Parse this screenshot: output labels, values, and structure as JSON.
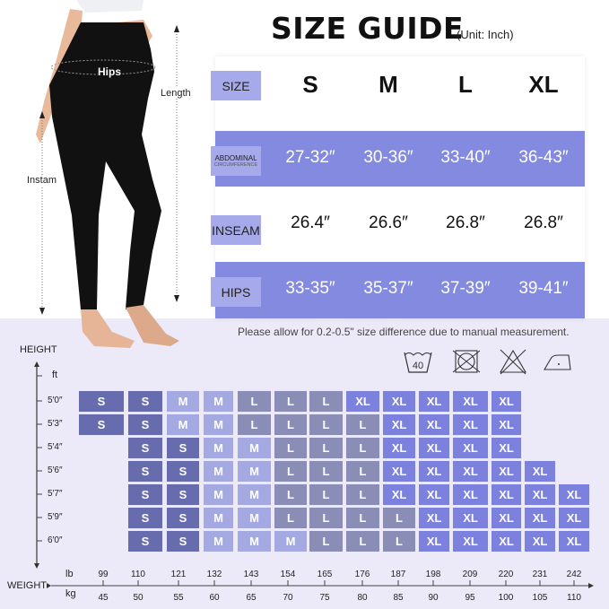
{
  "figure": {
    "hips_label": "Hips",
    "length_label": "Length",
    "inseam_label": "Instam"
  },
  "header": {
    "title": "SIZE GUIDE",
    "unit": "(Unit: Inch)"
  },
  "size_table": {
    "size_label": "SIZE",
    "sizes": [
      "S",
      "M",
      "L",
      "XL"
    ],
    "rows": [
      {
        "label": "ABDOMINAL",
        "sublabel": "CIRCUMFERENCE",
        "values": [
          "27-32″",
          "30-36″",
          "33-40″",
          "36-43″"
        ]
      },
      {
        "label": "INSEAM",
        "values": [
          "26.4″",
          "26.6″",
          "26.8″",
          "26.8″"
        ]
      },
      {
        "label": "HIPS",
        "values": [
          "33-35″",
          "35-37″",
          "37-39″",
          "39-41″"
        ]
      }
    ],
    "band_color": "#838ae0",
    "label_color": "#a7aaea"
  },
  "note": "Please allow for 0.2-0.5\" size difference due to manual measurement.",
  "care_icons": [
    {
      "icon": "wash-40-icon",
      "text": "40"
    },
    {
      "icon": "do-not-tumble-dry-icon"
    },
    {
      "icon": "do-not-bleach-icon"
    },
    {
      "icon": "iron-low-heat-icon"
    }
  ],
  "chart": {
    "height_label": "HEIGHT",
    "height_unit": "ft",
    "weight_label": "WEIGHT",
    "lb_label": "lb",
    "kg_label": "kg",
    "heights": [
      "5′0″",
      "5′3″",
      "5′4″",
      "5′6″",
      "5′7″",
      "5′9″",
      "6′0″"
    ],
    "lb": [
      "99",
      "110",
      "121",
      "132",
      "143",
      "154",
      "165",
      "176",
      "187",
      "198",
      "209",
      "220",
      "231",
      "242"
    ],
    "kg": [
      "45",
      "50",
      "55",
      "60",
      "65",
      "70",
      "75",
      "80",
      "85",
      "90",
      "95",
      "100",
      "105",
      "110"
    ],
    "size_colors": {
      "S": "#666cae",
      "M": "#a5a9e2",
      "L": "#8a8eb6",
      "XL": "#7b81dc"
    },
    "grid": [
      [
        "S",
        "S",
        "M",
        "M",
        "L",
        "L",
        "L",
        "XL",
        "XL",
        "XL",
        "XL",
        "XL",
        null,
        null
      ],
      [
        "S",
        "S",
        "M",
        "M",
        "L",
        "L",
        "L",
        "L",
        "XL",
        "XL",
        "XL",
        "XL",
        null,
        null
      ],
      [
        null,
        "S",
        "S",
        "M",
        "M",
        "L",
        "L",
        "L",
        "XL",
        "XL",
        "XL",
        "XL",
        null,
        null
      ],
      [
        null,
        "S",
        "S",
        "M",
        "M",
        "L",
        "L",
        "L",
        "XL",
        "XL",
        "XL",
        "XL",
        "XL",
        null
      ],
      [
        null,
        "S",
        "S",
        "M",
        "M",
        "L",
        "L",
        "L",
        "XL",
        "XL",
        "XL",
        "XL",
        "XL",
        "XL"
      ],
      [
        null,
        "S",
        "S",
        "M",
        "M",
        "L",
        "L",
        "L",
        "L",
        "XL",
        "XL",
        "XL",
        "XL",
        "XL"
      ],
      [
        null,
        "S",
        "S",
        "M",
        "M",
        "M",
        "L",
        "L",
        "L",
        "XL",
        "XL",
        "XL",
        "XL",
        "XL"
      ]
    ]
  }
}
